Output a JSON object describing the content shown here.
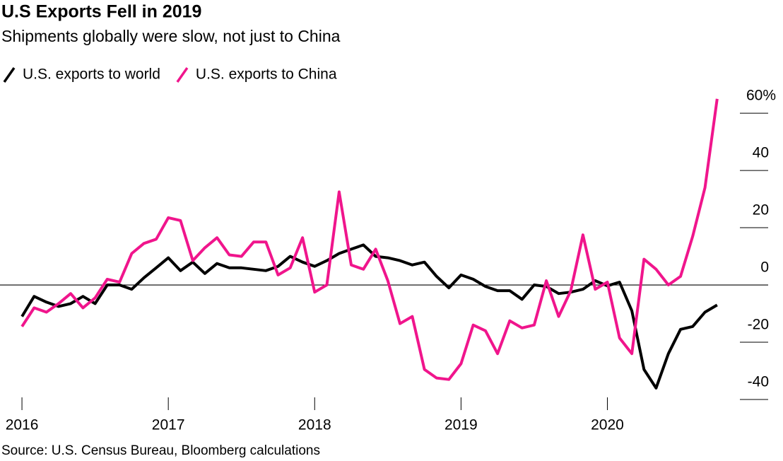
{
  "chart_data": {
    "type": "line",
    "title": "U.S Exports Fell in 2019",
    "subtitle": "Shipments globally were slow, not just to China",
    "source": "Source: U.S. Census Bureau, Bloomberg calculations",
    "x": [
      2016,
      2016.083,
      2016.167,
      2016.25,
      2016.333,
      2016.417,
      2016.5,
      2016.583,
      2016.667,
      2016.75,
      2016.833,
      2016.917,
      2017,
      2017.083,
      2017.167,
      2017.25,
      2017.333,
      2017.417,
      2017.5,
      2017.583,
      2017.667,
      2017.75,
      2017.833,
      2017.917,
      2018,
      2018.083,
      2018.167,
      2018.25,
      2018.333,
      2018.417,
      2018.5,
      2018.583,
      2018.667,
      2018.75,
      2018.833,
      2018.917,
      2019,
      2019.083,
      2019.167,
      2019.25,
      2019.333,
      2019.417,
      2019.5,
      2019.583,
      2019.667,
      2019.75,
      2019.833,
      2019.917,
      2020,
      2020.083,
      2020.167,
      2020.25,
      2020.333,
      2020.417,
      2020.5,
      2020.583,
      2020.667,
      2020.75
    ],
    "series": [
      {
        "name": "U.S. exports to world",
        "color": "#000000",
        "values": [
          -11,
          -4,
          -6,
          -7.5,
          -6.5,
          -4,
          -6.5,
          0,
          0,
          -1.5,
          2.5,
          6,
          9.5,
          5,
          8,
          4,
          7.5,
          6,
          6,
          5.5,
          5,
          6.5,
          10,
          8,
          6.5,
          8.5,
          11,
          12.5,
          14,
          10,
          9.5,
          8.5,
          7,
          8,
          3,
          -1,
          3.5,
          2,
          -0.5,
          -2,
          -2,
          -5,
          0,
          -0.5,
          -3,
          -2.5,
          -1.5,
          1.5,
          -0.3,
          1,
          -9,
          -29.5,
          -36,
          -24,
          -15.5,
          -14.5,
          -9.5,
          -7
        ]
      },
      {
        "name": "U.S. exports to China",
        "color": "#f0158c",
        "values": [
          -14.5,
          -8,
          -9.5,
          -6.5,
          -3,
          -8,
          -4.5,
          2,
          1,
          11,
          14.5,
          16,
          23.5,
          22.5,
          8.5,
          13,
          16.5,
          10.5,
          10,
          15,
          15,
          3.5,
          6,
          16.5,
          -2.5,
          0,
          32.5,
          7,
          5.5,
          12.5,
          1.5,
          -13.5,
          -11,
          -29.5,
          -32.5,
          -33,
          -27.5,
          -14,
          -16,
          -24,
          -12.5,
          -15,
          -14,
          1.5,
          -11,
          -2,
          17.5,
          -1.5,
          1,
          -18.5,
          -24,
          9,
          5.5,
          0,
          3,
          17,
          34,
          65
        ]
      }
    ],
    "xlim": [
      2015.85,
      2021.2
    ],
    "xticks": [
      2016,
      2017,
      2018,
      2019,
      2020
    ],
    "ylim": [
      -43.7,
      69.9
    ],
    "yticks": [
      {
        "value": 60,
        "label": "60%"
      },
      40,
      20,
      0,
      -20,
      -40
    ]
  }
}
